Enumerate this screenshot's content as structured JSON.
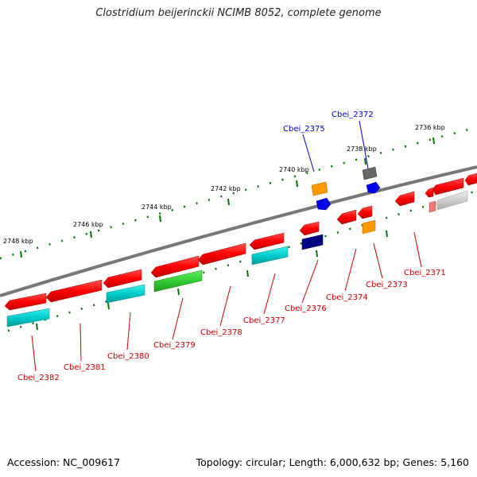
{
  "title": "Clostridium beijerinckii NCIMB 8052, complete genome",
  "accession": "Accession: NC_009617",
  "topology": "Topology: circular; Length: 6,000,632 bp; Genes: 5,160",
  "scale_labels": [
    "2748 kbp",
    "2746 kbp",
    "2744 kbp",
    "2742 kbp",
    "2740 kbp",
    "2738 kbp",
    "2736 kbp"
  ],
  "gene_labels": [
    {
      "text": "Cbei_2372",
      "color": "#0000cc"
    },
    {
      "text": "Cbei_2375",
      "color": "#0000cc"
    },
    {
      "text": "Cbei_2371",
      "color": "#cc0000"
    },
    {
      "text": "Cbei_2373",
      "color": "#cc0000"
    },
    {
      "text": "Cbei_2374",
      "color": "#cc0000"
    },
    {
      "text": "Cbei_2376",
      "color": "#cc0000"
    },
    {
      "text": "Cbei_2377",
      "color": "#cc0000"
    },
    {
      "text": "Cbei_2378",
      "color": "#cc0000"
    },
    {
      "text": "Cbei_2379",
      "color": "#cc0000"
    },
    {
      "text": "Cbei_2380",
      "color": "#cc0000"
    },
    {
      "text": "Cbei_2381",
      "color": "#cc0000"
    },
    {
      "text": "Cbei_2382",
      "color": "#cc0000"
    }
  ],
  "colors": {
    "gene_red": "#ff0000",
    "gene_cyan": "#00cccc",
    "gene_green": "#33cc33",
    "gene_blue": "#0000ee",
    "gene_navy": "#000080",
    "gene_orange": "#ff9900",
    "gene_gray": "#666666",
    "gene_light_gray": "#cccccc",
    "backbone": "#777777",
    "ruler": "#007700"
  }
}
